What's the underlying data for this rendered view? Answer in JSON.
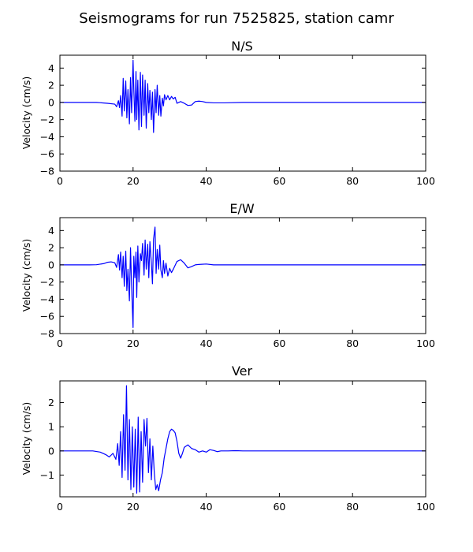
{
  "figure": {
    "title": "Seismograms for run 7525825, station camr"
  },
  "chart_data": [
    {
      "type": "line",
      "title": "N/S",
      "xlabel": "",
      "ylabel": "Velocity (cm/s)",
      "xlim": [
        0,
        100
      ],
      "ylim": [
        -8,
        5.5
      ],
      "xticks": [
        0,
        20,
        40,
        60,
        80,
        100
      ],
      "yticks": [
        -8,
        -6,
        -4,
        -2,
        0,
        2,
        4
      ],
      "grid": false,
      "line_color": "#0000ff",
      "series": [
        {
          "x": [
            0,
            10,
            13,
            15,
            15.5,
            16,
            16.3,
            16.6,
            17,
            17.3,
            17.6,
            18,
            18.3,
            18.6,
            19,
            19.3,
            19.6,
            20,
            20.2,
            20.5,
            20.8,
            21,
            21.3,
            21.6,
            22,
            22.3,
            22.6,
            23,
            23.3,
            23.6,
            24,
            24.3,
            24.6,
            25,
            25.3,
            25.6,
            26,
            26.3,
            26.6,
            27,
            27.3,
            27.6,
            28,
            28.3,
            28.6,
            29,
            29.5,
            30,
            30.5,
            31,
            31.5,
            32,
            33,
            34,
            35,
            36,
            37,
            38,
            39,
            40,
            42,
            45,
            50,
            60,
            80,
            100
          ],
          "y": [
            0,
            0,
            -0.1,
            -0.2,
            -0.5,
            0.2,
            -0.6,
            0.8,
            -1.6,
            2.8,
            -1.0,
            2.5,
            -1.8,
            1.5,
            -2.5,
            2.9,
            -1.2,
            4.9,
            1.5,
            -2.2,
            3.6,
            -2.0,
            2.6,
            -3.2,
            3.5,
            -2.8,
            3.2,
            -1.5,
            2.6,
            -3.0,
            2.2,
            -1.2,
            1.4,
            -2.0,
            1.2,
            -3.5,
            1.5,
            -1.2,
            2.0,
            -1.5,
            0.8,
            -1.6,
            0.5,
            -0.4,
            0.9,
            0.3,
            0.8,
            0.3,
            0.7,
            0.4,
            0.6,
            -0.1,
            0.1,
            -0.1,
            -0.35,
            -0.3,
            0.1,
            0.15,
            0.1,
            0.0,
            -0.05,
            -0.05,
            0,
            0,
            0,
            0
          ]
        }
      ]
    },
    {
      "type": "line",
      "title": "E/W",
      "xlabel": "",
      "ylabel": "Velocity (cm/s)",
      "xlim": [
        0,
        100
      ],
      "ylim": [
        -8,
        5.5
      ],
      "xticks": [
        0,
        20,
        40,
        60,
        80,
        100
      ],
      "yticks": [
        -8,
        -6,
        -4,
        -2,
        0,
        2,
        4
      ],
      "grid": false,
      "line_color": "#0000ff",
      "series": [
        {
          "x": [
            0,
            8,
            10,
            12,
            13,
            14,
            15,
            15.5,
            16,
            16.3,
            16.6,
            17,
            17.3,
            17.6,
            18,
            18.3,
            18.6,
            19,
            19.3,
            19.6,
            20,
            20.2,
            20.5,
            20.8,
            21,
            21.3,
            21.6,
            22,
            22.3,
            22.6,
            23,
            23.3,
            23.6,
            24,
            24.3,
            24.6,
            25,
            25.3,
            25.6,
            26,
            26.3,
            26.6,
            27,
            27.3,
            27.6,
            28,
            28.3,
            28.6,
            29,
            29.5,
            30,
            30.5,
            31,
            32,
            33,
            34,
            35,
            36,
            37,
            38,
            40,
            42,
            45,
            50,
            60,
            80,
            100
          ],
          "y": [
            0,
            0,
            0.02,
            0.15,
            0.3,
            0.35,
            0.25,
            -0.3,
            1.2,
            -0.6,
            1.5,
            -1.5,
            1.0,
            -2.5,
            1.6,
            -3.0,
            -0.5,
            -4.2,
            2.0,
            -2.5,
            -7.3,
            1.0,
            -1.5,
            1.5,
            -3.8,
            2.2,
            -2.0,
            1.3,
            0.5,
            2.5,
            -1.2,
            2.9,
            -0.5,
            2.4,
            -1.5,
            2.7,
            0.2,
            -2.2,
            3.0,
            4.4,
            -1.0,
            1.8,
            -0.5,
            2.3,
            -0.6,
            -1.5,
            0.5,
            -1.0,
            0.2,
            -1.3,
            -0.4,
            -0.9,
            -0.5,
            0.4,
            0.6,
            0.2,
            -0.35,
            -0.2,
            0.0,
            0.05,
            0.1,
            0.0,
            0.0,
            0,
            0,
            0,
            0
          ]
        }
      ]
    },
    {
      "type": "line",
      "title": "Ver",
      "xlabel": "",
      "ylabel": "Velocity (cm/s)",
      "xlim": [
        0,
        100
      ],
      "ylim": [
        -1.9,
        2.9
      ],
      "xticks": [
        0,
        20,
        40,
        60,
        80,
        100
      ],
      "yticks": [
        -1,
        0,
        1,
        2
      ],
      "grid": false,
      "line_color": "#0000ff",
      "series": [
        {
          "x": [
            0,
            9,
            11,
            12.5,
            13.5,
            14.5,
            15.3,
            15.8,
            16.2,
            16.6,
            17,
            17.4,
            17.8,
            18.2,
            18.6,
            19,
            19.4,
            19.8,
            20.2,
            20.6,
            21,
            21.4,
            21.8,
            22.2,
            22.6,
            23,
            23.4,
            23.8,
            24.2,
            24.6,
            25,
            25.4,
            25.8,
            26.2,
            26.6,
            27,
            27.5,
            28,
            28.5,
            29,
            29.5,
            30,
            30.5,
            31,
            31.5,
            32,
            32.5,
            33,
            33.5,
            34,
            35,
            36,
            37,
            38,
            39,
            40,
            41,
            42,
            43,
            44,
            46,
            48,
            50,
            55,
            60,
            80,
            100
          ],
          "y": [
            0,
            0,
            -0.05,
            -0.15,
            -0.25,
            -0.1,
            -0.35,
            0.3,
            -0.6,
            0.8,
            -1.1,
            1.5,
            -0.8,
            2.7,
            -1.2,
            1.3,
            -1.6,
            1.0,
            -1.5,
            0.9,
            -1.75,
            1.4,
            -1.7,
            0.8,
            -1.3,
            1.3,
            0.2,
            1.35,
            -0.9,
            0.5,
            -1.2,
            0.2,
            -0.9,
            -1.6,
            -1.4,
            -1.65,
            -1.2,
            -0.9,
            -0.3,
            0.1,
            0.5,
            0.8,
            0.9,
            0.85,
            0.75,
            0.4,
            -0.1,
            -0.3,
            -0.1,
            0.15,
            0.25,
            0.1,
            0.05,
            -0.05,
            0.0,
            -0.05,
            0.05,
            0.02,
            -0.03,
            0.0,
            0.0,
            0.01,
            0.0,
            0,
            0,
            0,
            0
          ]
        }
      ]
    }
  ]
}
